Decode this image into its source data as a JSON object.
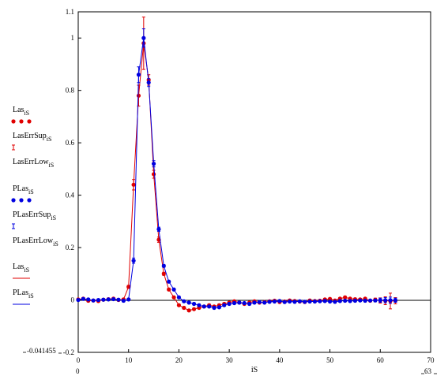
{
  "chart_data": {
    "type": "line",
    "xlabel": "iS",
    "xlim": [
      0,
      70
    ],
    "ylim": [
      -0.2,
      1.1
    ],
    "x_ticks": [
      "0",
      "10",
      "20",
      "30",
      "40",
      "50",
      "60",
      "70"
    ],
    "y_ticks": [
      "-0.2",
      "0",
      "0.2",
      "0.4",
      "0.6",
      "0.8",
      "1",
      "1.1"
    ],
    "x_range_low_label": "0",
    "x_range_high_label": "63",
    "y_range_low_label": "-0.041455",
    "grid": false,
    "legend_position": "left",
    "legend": [
      {
        "name": "Las",
        "sub": "iS",
        "glyph": "dots",
        "color": "#e00000"
      },
      {
        "name": "LasErrSup",
        "sub": "iS",
        "glyph": "errbar",
        "color": "#e00000"
      },
      {
        "name": "LasErrLow",
        "sub": "iS",
        "glyph": "none",
        "color": "#e00000"
      },
      {
        "name": "PLas",
        "sub": "iS",
        "glyph": "dots",
        "color": "#0000e0"
      },
      {
        "name": "PLasErrSup",
        "sub": "iS",
        "glyph": "errbar",
        "color": "#0000e0"
      },
      {
        "name": "PLasErrLow",
        "sub": "iS",
        "glyph": "none",
        "color": "#0000e0"
      },
      {
        "name": "Las",
        "sub": "iS",
        "glyph": "line",
        "color": "#e00000"
      },
      {
        "name": "PLas",
        "sub": "iS",
        "glyph": "line",
        "color": "#0000e0"
      }
    ],
    "x": [
      0,
      1,
      2,
      3,
      4,
      5,
      6,
      7,
      8,
      9,
      10,
      11,
      12,
      13,
      14,
      15,
      16,
      17,
      18,
      19,
      20,
      21,
      22,
      23,
      24,
      25,
      26,
      27,
      28,
      29,
      30,
      31,
      32,
      33,
      34,
      35,
      36,
      37,
      38,
      39,
      40,
      41,
      42,
      43,
      44,
      45,
      46,
      47,
      48,
      49,
      50,
      51,
      52,
      53,
      54,
      55,
      56,
      57,
      58,
      59,
      60,
      61,
      62,
      63
    ],
    "series": [
      {
        "name": "Las",
        "color": "#e00000",
        "values": [
          0.002,
          0.005,
          -0.003,
          -0.002,
          -0.004,
          0.001,
          0.003,
          0.005,
          0.0,
          0.002,
          0.05,
          0.44,
          0.78,
          0.98,
          0.84,
          0.48,
          0.23,
          0.1,
          0.04,
          0.01,
          -0.02,
          -0.03,
          -0.04,
          -0.035,
          -0.03,
          -0.025,
          -0.02,
          -0.025,
          -0.02,
          -0.015,
          -0.01,
          -0.005,
          -0.01,
          -0.015,
          -0.01,
          -0.005,
          -0.01,
          -0.008,
          -0.005,
          -0.003,
          -0.008,
          -0.006,
          -0.002,
          -0.004,
          -0.006,
          -0.008,
          -0.002,
          -0.004,
          -0.003,
          0.002,
          0.004,
          -0.002,
          0.005,
          0.01,
          0.005,
          0.003,
          0.002,
          0.005,
          -0.003,
          0.001,
          -0.002,
          -0.003,
          -0.004,
          -0.003
        ],
        "err": [
          0.004,
          0.004,
          0.004,
          0.004,
          0.004,
          0.004,
          0.004,
          0.004,
          0.004,
          0.004,
          0.006,
          0.02,
          0.04,
          0.1,
          0.02,
          0.015,
          0.01,
          0.006,
          0.004,
          0.004,
          0.004,
          0.004,
          0.004,
          0.004,
          0.004,
          0.004,
          0.004,
          0.004,
          0.004,
          0.004,
          0.004,
          0.004,
          0.004,
          0.004,
          0.004,
          0.004,
          0.004,
          0.004,
          0.004,
          0.004,
          0.004,
          0.004,
          0.004,
          0.004,
          0.004,
          0.004,
          0.004,
          0.004,
          0.004,
          0.004,
          0.004,
          0.004,
          0.004,
          0.004,
          0.004,
          0.004,
          0.004,
          0.004,
          0.004,
          0.006,
          0.01,
          0.015,
          0.03,
          0.012
        ]
      },
      {
        "name": "PLas",
        "color": "#0000e0",
        "values": [
          0.0,
          0.004,
          0.002,
          -0.002,
          0.0,
          0.001,
          0.002,
          0.003,
          0.001,
          -0.003,
          0.002,
          0.15,
          0.86,
          1.0,
          0.83,
          0.52,
          0.27,
          0.13,
          0.07,
          0.04,
          0.01,
          -0.005,
          -0.01,
          -0.015,
          -0.02,
          -0.025,
          -0.025,
          -0.03,
          -0.028,
          -0.02,
          -0.015,
          -0.012,
          -0.01,
          -0.012,
          -0.015,
          -0.01,
          -0.008,
          -0.01,
          -0.007,
          -0.006,
          -0.004,
          -0.008,
          -0.006,
          -0.007,
          -0.005,
          -0.007,
          -0.006,
          -0.006,
          -0.005,
          -0.004,
          -0.006,
          -0.007,
          -0.004,
          -0.003,
          -0.004,
          -0.003,
          -0.002,
          -0.003,
          -0.002,
          -0.002,
          -0.001,
          -0.001,
          -0.001,
          -0.001
        ],
        "err": [
          0.004,
          0.004,
          0.004,
          0.004,
          0.004,
          0.004,
          0.004,
          0.004,
          0.004,
          0.004,
          0.004,
          0.01,
          0.03,
          0.035,
          0.015,
          0.012,
          0.008,
          0.005,
          0.004,
          0.004,
          0.004,
          0.004,
          0.004,
          0.004,
          0.004,
          0.004,
          0.004,
          0.004,
          0.004,
          0.004,
          0.004,
          0.004,
          0.004,
          0.004,
          0.004,
          0.004,
          0.004,
          0.004,
          0.004,
          0.004,
          0.004,
          0.004,
          0.004,
          0.004,
          0.004,
          0.004,
          0.004,
          0.004,
          0.004,
          0.004,
          0.004,
          0.004,
          0.004,
          0.004,
          0.004,
          0.004,
          0.004,
          0.004,
          0.004,
          0.005,
          0.008,
          0.01,
          0.012,
          0.008
        ]
      }
    ]
  }
}
